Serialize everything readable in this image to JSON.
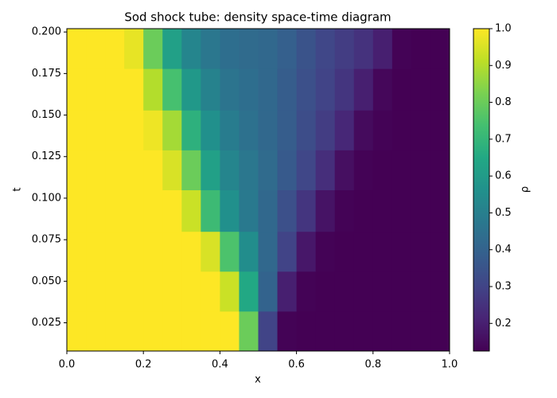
{
  "chart_data": {
    "type": "heatmap",
    "title": "Sod shock tube: density space-time diagram",
    "xlabel": "x",
    "ylabel": "t",
    "colorbar_label": "ρ",
    "colormap": "viridis",
    "xbins": [
      0,
      0.05,
      0.1,
      0.15,
      0.2,
      0.25,
      0.3,
      0.35,
      0.4,
      0.45,
      0.5,
      0.55,
      0.6,
      0.65,
      0.7,
      0.75,
      0.8,
      0.85,
      0.9,
      0.95,
      1
    ],
    "tbins": [
      0.008,
      0.032,
      0.056,
      0.08,
      0.105,
      0.129,
      0.153,
      0.178,
      0.202
    ],
    "values": [
      [
        1,
        1,
        1,
        1,
        1,
        1,
        1,
        1,
        1,
        0.8,
        0.3,
        0.13,
        0.125,
        0.125,
        0.125,
        0.125,
        0.125,
        0.125,
        0.125,
        0.125
      ],
      [
        1,
        1,
        1,
        1,
        1,
        1,
        1,
        1,
        0.93,
        0.65,
        0.4,
        0.2,
        0.13,
        0.125,
        0.125,
        0.125,
        0.125,
        0.125,
        0.125,
        0.125
      ],
      [
        1,
        1,
        1,
        1,
        1,
        1,
        1,
        0.95,
        0.75,
        0.55,
        0.42,
        0.3,
        0.18,
        0.13,
        0.125,
        0.125,
        0.125,
        0.125,
        0.125,
        0.125
      ],
      [
        1,
        1,
        1,
        1,
        1,
        1,
        0.93,
        0.72,
        0.56,
        0.48,
        0.42,
        0.34,
        0.26,
        0.17,
        0.13,
        0.125,
        0.125,
        0.125,
        0.125,
        0.125
      ],
      [
        1,
        1,
        1,
        1,
        1,
        0.95,
        0.8,
        0.62,
        0.52,
        0.47,
        0.43,
        0.37,
        0.31,
        0.24,
        0.16,
        0.13,
        0.125,
        0.125,
        0.125,
        0.125
      ],
      [
        1,
        1,
        1,
        1,
        0.98,
        0.88,
        0.68,
        0.56,
        0.49,
        0.45,
        0.42,
        0.38,
        0.33,
        0.28,
        0.22,
        0.15,
        0.13,
        0.125,
        0.125,
        0.125
      ],
      [
        1,
        1,
        1,
        1,
        0.9,
        0.74,
        0.59,
        0.51,
        0.46,
        0.44,
        0.42,
        0.38,
        0.34,
        0.3,
        0.26,
        0.2,
        0.14,
        0.125,
        0.125,
        0.125
      ],
      [
        1,
        1,
        1,
        0.97,
        0.8,
        0.62,
        0.52,
        0.47,
        0.44,
        0.43,
        0.42,
        0.39,
        0.35,
        0.31,
        0.28,
        0.25,
        0.2,
        0.13,
        0.125,
        0.125
      ]
    ],
    "xlim": [
      0,
      1
    ],
    "ylim": [
      0.008,
      0.202
    ],
    "xticks": [
      {
        "value": 0,
        "label": "0.0"
      },
      0.2,
      0.4,
      0.6,
      0.8,
      {
        "value": 1,
        "label": "1.0"
      }
    ],
    "yticks": [
      0.025,
      {
        "value": 0.05,
        "label": "0.050"
      },
      0.075,
      {
        "value": 0.1,
        "label": "0.100"
      },
      0.125,
      {
        "value": 0.15,
        "label": "0.150"
      },
      0.175,
      {
        "value": 0.2,
        "label": "0.200"
      }
    ],
    "clim": [
      0.125,
      1
    ],
    "cticks": [
      0.2,
      0.3,
      0.4,
      0.5,
      0.6,
      0.7,
      0.8,
      0.9,
      {
        "value": 1,
        "label": "1.0"
      }
    ]
  }
}
